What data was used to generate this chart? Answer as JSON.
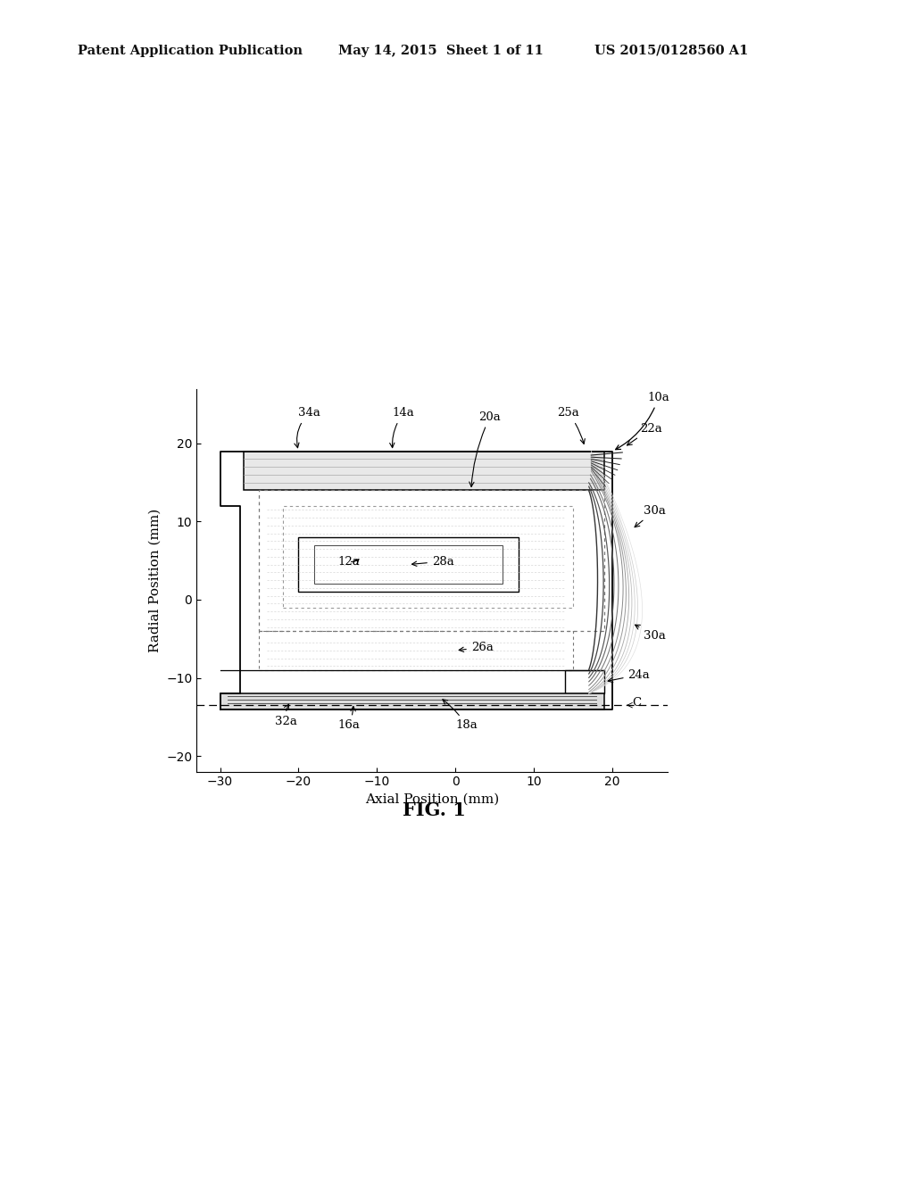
{
  "title": "FIG. 1",
  "xlabel": "Axial Position (mm)",
  "ylabel": "Radial Position (mm)",
  "xlim": [
    -33,
    27
  ],
  "ylim": [
    -22,
    27
  ],
  "xticks": [
    -30,
    -20,
    -10,
    0,
    10,
    20
  ],
  "yticks": [
    -20,
    -10,
    0,
    10,
    20
  ],
  "header_left": "Patent Application Publication",
  "header_center": "May 14, 2015  Sheet 1 of 11",
  "header_right": "US 2015/0128560 A1",
  "bg_color": "#ffffff",
  "line_color": "#000000"
}
